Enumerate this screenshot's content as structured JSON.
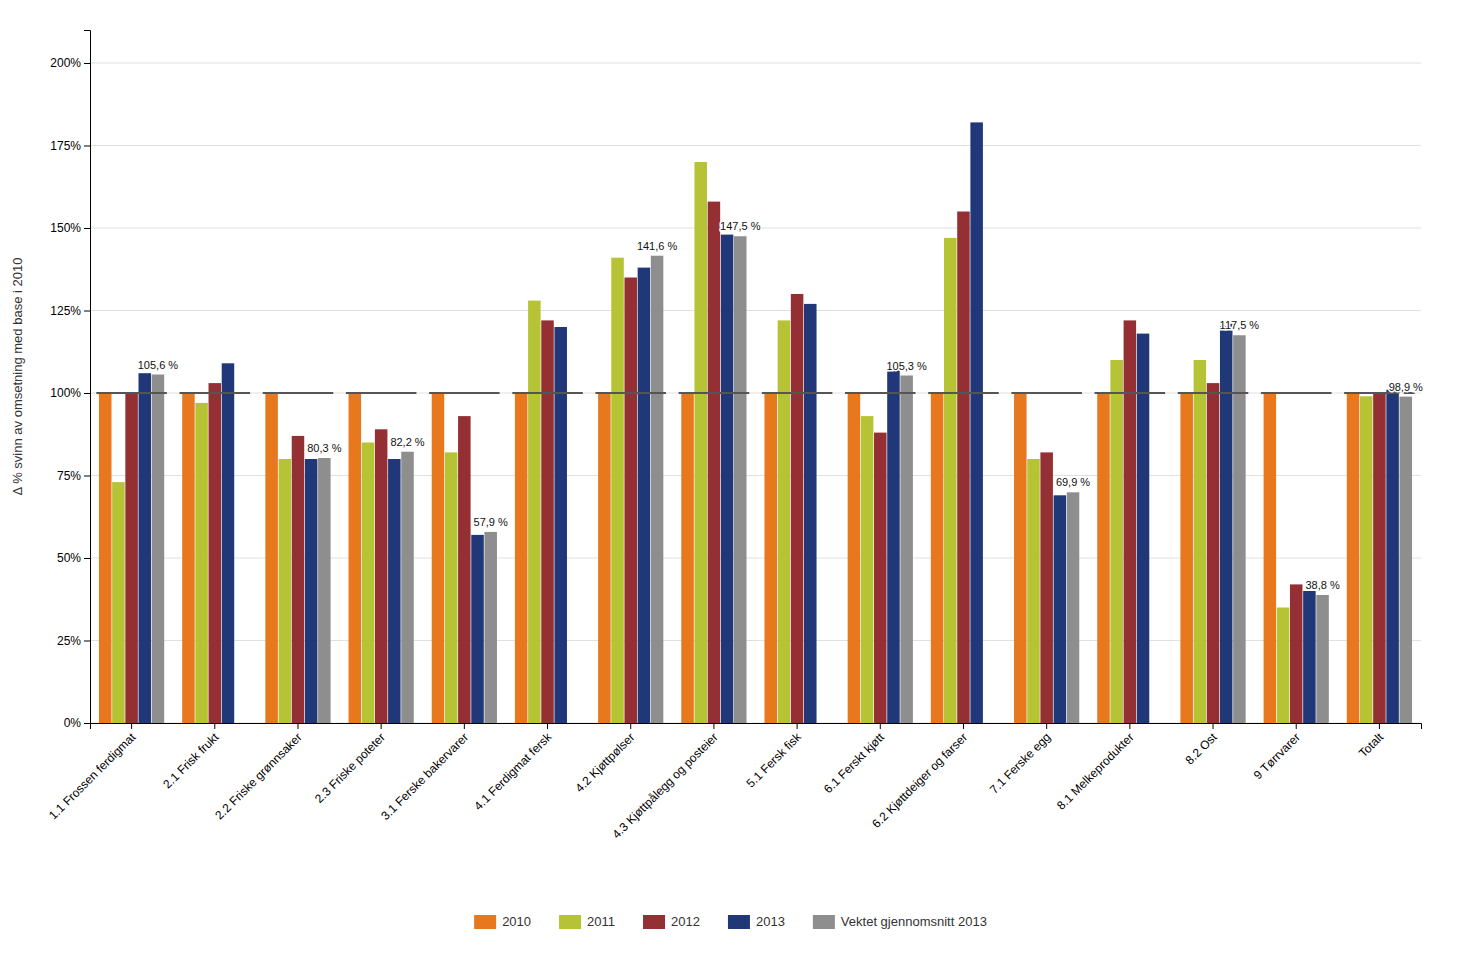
{
  "chart_data": {
    "type": "bar",
    "y_label": "Δ % svinn av omsetning med base i 2010",
    "categories": [
      "1.1 Frossen ferdigmat",
      "2.1 Frisk frukt",
      "2.2 Friske grønnsaker",
      "2.3 Friske poteter",
      "3.1 Ferske bakervarer",
      "4.1 Ferdigmat fersk",
      "4.2 Kjøttpølser",
      "4.3 Kjøttpålegg og posteier",
      "5.1 Fersk fisk",
      "6.1 Ferskt kjøtt",
      "6.2 Kjøttdeiger og farser",
      "7.1 Ferske egg",
      "8.1 Melkeprodukter",
      "8.2 Ost",
      "9 Tørrvarer",
      "Totalt"
    ],
    "series": [
      {
        "name": "2010",
        "color": "#E8781E",
        "values": [
          100,
          100,
          100,
          100,
          100,
          100,
          100,
          100,
          100,
          100,
          100,
          100,
          100,
          100,
          100,
          100
        ]
      },
      {
        "name": "2011",
        "color": "#B5C334",
        "values": [
          73,
          97,
          80,
          85,
          82,
          128,
          141,
          170,
          122,
          93,
          147,
          80,
          110,
          110,
          35,
          99
        ]
      },
      {
        "name": "2012",
        "color": "#943033",
        "values": [
          100,
          103,
          87,
          89,
          93,
          122,
          135,
          158,
          130,
          88,
          155,
          82,
          122,
          103,
          42,
          100
        ]
      },
      {
        "name": "2013",
        "color": "#203878",
        "values": [
          106,
          109,
          80,
          80,
          57,
          120,
          138,
          148,
          127,
          107,
          182,
          69,
          118,
          121,
          40,
          101
        ]
      },
      {
        "name": "Vektet gjennomsnitt 2013",
        "color": "#8E8E8E",
        "values": [
          105.6,
          null,
          80.3,
          82.2,
          57.9,
          null,
          141.6,
          147.5,
          null,
          105.3,
          null,
          69.9,
          null,
          117.5,
          38.8,
          98.9
        ],
        "value_labels": [
          "105,6 %",
          null,
          "80,3 %",
          "82,2 %",
          "57,9 %",
          null,
          "141,6 %",
          "147,5 %",
          null,
          "105,3 %",
          null,
          "69,9 %",
          null,
          "117,5 %",
          "38,8 %",
          "98,9 %"
        ]
      }
    ],
    "data_labels": true,
    "reference_line": 100,
    "ylim": [
      0,
      210
    ],
    "yticks": [
      {
        "value": 0,
        "label": "0%"
      },
      {
        "value": 25,
        "label": "25%"
      },
      {
        "value": 50,
        "label": "50%"
      },
      {
        "value": 75,
        "label": "75%"
      },
      {
        "value": 100,
        "label": "100%"
      },
      {
        "value": 125,
        "label": "125%"
      },
      {
        "value": 150,
        "label": "150%"
      },
      {
        "value": 175,
        "label": "175%"
      },
      {
        "value": 200,
        "label": "200%"
      }
    ],
    "grid": true,
    "legend": "bottom"
  }
}
